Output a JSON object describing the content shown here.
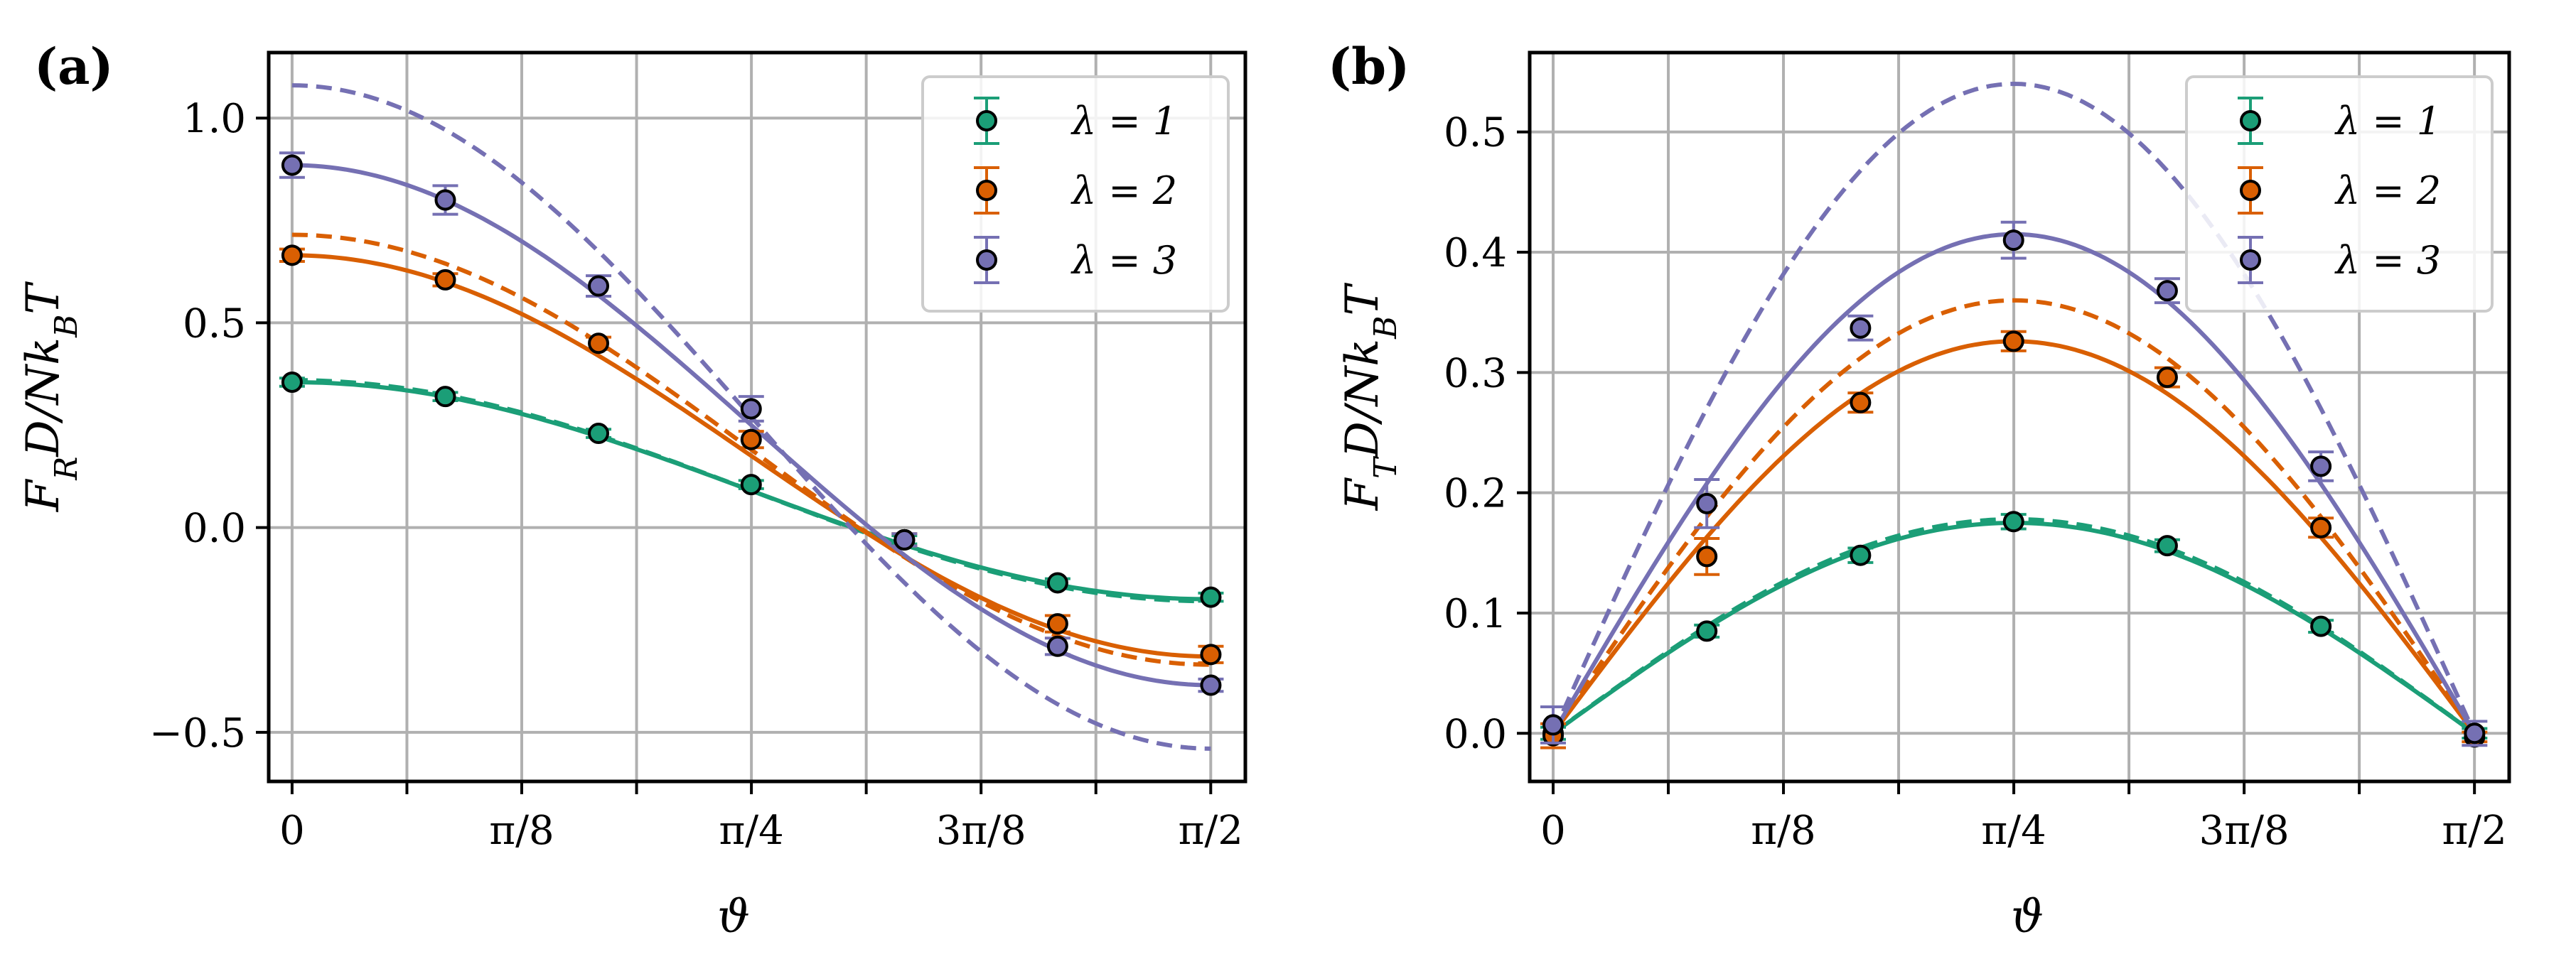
{
  "figure": {
    "panels": [
      {
        "id": "a",
        "label": "(a)",
        "ylabel": "F_R D / N k_B T",
        "ylabel_parts": {
          "main": "F",
          "sub": "R",
          "rest": "D/Nk",
          "sub2": "B",
          "tail": "T"
        },
        "xlabel": "ϑ"
      },
      {
        "id": "b",
        "label": "(b)",
        "ylabel": "F_T D / N k_B T",
        "ylabel_parts": {
          "main": "F",
          "sub": "T",
          "rest": "D/Nk",
          "sub2": "B",
          "tail": "T"
        },
        "xlabel": "ϑ"
      }
    ]
  },
  "chart_data": [
    {
      "type": "line",
      "panel": "(a)",
      "title": "",
      "xlabel": "ϑ",
      "ylabel": "F_R D/Nk_B T",
      "xlim": [
        -0.04,
        1.63
      ],
      "ylim": [
        -0.62,
        1.16
      ],
      "x_ticks": [
        {
          "value": 0,
          "label": "0"
        },
        {
          "value": 0.3927,
          "label": "π/8"
        },
        {
          "value": 0.7854,
          "label": "π/4"
        },
        {
          "value": 1.1781,
          "label": "3π/8"
        },
        {
          "value": 1.5708,
          "label": "π/2"
        }
      ],
      "x_minor_ticks": [
        0.19635,
        0.58905,
        0.98175,
        1.37445
      ],
      "y_ticks": [
        {
          "value": -0.5,
          "label": "−0.5"
        },
        {
          "value": 0.0,
          "label": "0.0"
        },
        {
          "value": 0.5,
          "label": "0.5"
        },
        {
          "value": 1.0,
          "label": "1.0"
        }
      ],
      "grid": true,
      "legend": {
        "position": "top-right",
        "entries": [
          "λ = 1",
          "λ = 2",
          "λ = 3"
        ]
      },
      "series": [
        {
          "name": "λ = 1",
          "color": "#1b9e77",
          "points_x": [
            0,
            0.262,
            0.524,
            0.785,
            1.047,
            1.309,
            1.571
          ],
          "points_y": [
            0.355,
            0.32,
            0.23,
            0.105,
            -0.03,
            -0.135,
            -0.17
          ],
          "errors": [
            0.01,
            0.01,
            0.01,
            0.01,
            0.01,
            0.01,
            0.01
          ],
          "fit_amp": 0.265,
          "fit_offset": 0.09,
          "theory_amp": 0.27,
          "theory_offset": 0.09
        },
        {
          "name": "λ = 2",
          "color": "#d95f02",
          "points_x": [
            0,
            0.262,
            0.524,
            0.785,
            1.047,
            1.309,
            1.571
          ],
          "points_y": [
            0.665,
            0.605,
            0.45,
            0.215,
            -0.03,
            -0.235,
            -0.31
          ],
          "errors": [
            0.015,
            0.015,
            0.015,
            0.02,
            0.015,
            0.02,
            0.02
          ],
          "fit_amp": 0.49,
          "fit_offset": 0.175,
          "theory_amp": 0.525,
          "theory_offset": 0.19
        },
        {
          "name": "λ = 3",
          "color": "#7570b3",
          "points_x": [
            0,
            0.262,
            0.524,
            0.785,
            1.047,
            1.309,
            1.571
          ],
          "points_y": [
            0.885,
            0.8,
            0.59,
            0.29,
            -0.03,
            -0.29,
            -0.385
          ],
          "errors": [
            0.03,
            0.035,
            0.025,
            0.03,
            0.015,
            0.02,
            0.015
          ],
          "fit_amp": 0.635,
          "fit_offset": 0.25,
          "theory_amp": 0.81,
          "theory_offset": 0.27
        }
      ]
    },
    {
      "type": "line",
      "panel": "(b)",
      "title": "",
      "xlabel": "ϑ",
      "ylabel": "F_T D/Nk_B T",
      "xlim": [
        -0.04,
        1.63
      ],
      "ylim": [
        -0.04,
        0.566
      ],
      "x_ticks": [
        {
          "value": 0,
          "label": "0"
        },
        {
          "value": 0.3927,
          "label": "π/8"
        },
        {
          "value": 0.7854,
          "label": "π/4"
        },
        {
          "value": 1.1781,
          "label": "3π/8"
        },
        {
          "value": 1.5708,
          "label": "π/2"
        }
      ],
      "x_minor_ticks": [
        0.19635,
        0.58905,
        0.98175,
        1.37445
      ],
      "y_ticks": [
        {
          "value": 0.0,
          "label": "0.0"
        },
        {
          "value": 0.1,
          "label": "0.1"
        },
        {
          "value": 0.2,
          "label": "0.2"
        },
        {
          "value": 0.3,
          "label": "0.3"
        },
        {
          "value": 0.4,
          "label": "0.4"
        },
        {
          "value": 0.5,
          "label": "0.5"
        }
      ],
      "grid": true,
      "legend": {
        "position": "top-right",
        "entries": [
          "λ = 1",
          "λ = 2",
          "λ = 3"
        ]
      },
      "series": [
        {
          "name": "λ = 1",
          "color": "#1b9e77",
          "points_x": [
            0,
            0.262,
            0.524,
            0.785,
            1.047,
            1.309,
            1.571
          ],
          "points_y": [
            0.0,
            0.085,
            0.148,
            0.176,
            0.156,
            0.089,
            0.0
          ],
          "errors": [
            0.005,
            0.005,
            0.006,
            0.006,
            0.005,
            0.005,
            0.004
          ],
          "fit_amp": 0.175,
          "theory_amp": 0.178
        },
        {
          "name": "λ = 2",
          "color": "#d95f02",
          "points_x": [
            0,
            0.262,
            0.524,
            0.785,
            1.047,
            1.309,
            1.571
          ],
          "points_y": [
            -0.002,
            0.147,
            0.275,
            0.326,
            0.296,
            0.171,
            -0.003
          ],
          "errors": [
            0.01,
            0.015,
            0.008,
            0.008,
            0.008,
            0.008,
            0.004
          ],
          "fit_amp": 0.326,
          "theory_amp": 0.36
        },
        {
          "name": "λ = 3",
          "color": "#7570b3",
          "points_x": [
            0,
            0.262,
            0.524,
            0.785,
            1.047,
            1.309,
            1.571
          ],
          "points_y": [
            0.007,
            0.191,
            0.337,
            0.41,
            0.368,
            0.222,
            0.0
          ],
          "errors": [
            0.015,
            0.02,
            0.01,
            0.015,
            0.01,
            0.012,
            0.01
          ],
          "fit_amp": 0.415,
          "theory_amp": 0.54
        }
      ]
    }
  ]
}
